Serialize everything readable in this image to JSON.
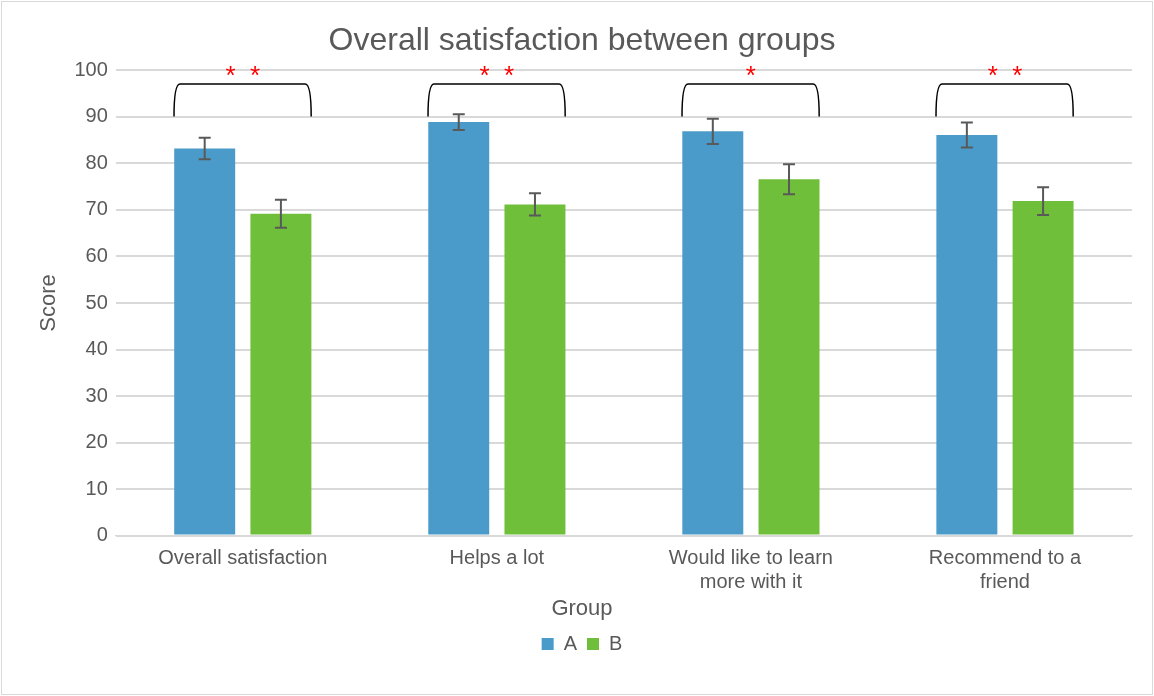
{
  "chart_data": {
    "type": "bar",
    "title": "Overall satisfaction between groups",
    "ylabel": "Score",
    "legend_title": "Group",
    "categories": [
      "Overall satisfaction",
      "Helps a lot",
      "Would like to learn more with it",
      "Recommend to a friend"
    ],
    "series": [
      {
        "name": "A",
        "color": "#4a9bc9",
        "values": [
          83.2,
          88.9,
          86.9,
          86.1
        ],
        "errors": [
          2.3,
          1.7,
          2.7,
          2.7
        ]
      },
      {
        "name": "B",
        "color": "#70bf3a",
        "values": [
          69.2,
          71.2,
          76.6,
          71.9
        ],
        "errors": [
          3,
          2.4,
          3.2,
          3
        ]
      }
    ],
    "ylim": [
      0,
      100
    ],
    "yticks": [
      0,
      10,
      20,
      30,
      40,
      50,
      60,
      70,
      80,
      90,
      100
    ],
    "grid": "y",
    "legend": "bottom",
    "annotations": [
      "*  *",
      "*  *",
      "*",
      "*  *"
    ]
  }
}
